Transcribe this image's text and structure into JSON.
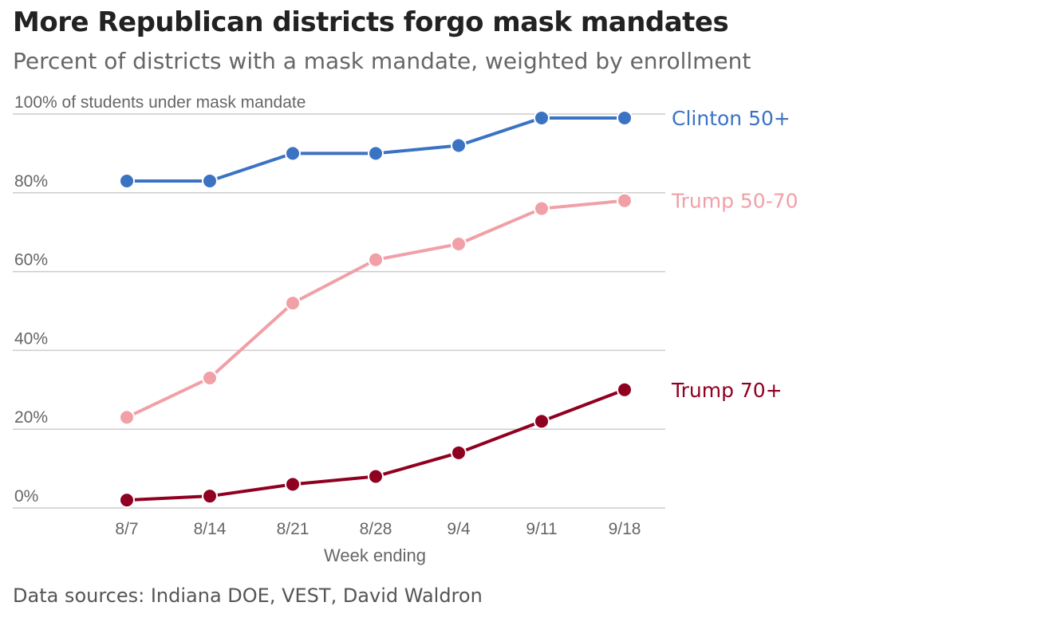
{
  "header": {
    "title": "More Republican districts forgo mask mandates",
    "subtitle": "Percent of districts with a mask mandate, weighted by enrollment"
  },
  "footer": {
    "source": "Data sources: Indiana DOE, VEST, David Waldron"
  },
  "chart_data": {
    "type": "line",
    "title": "More Republican districts forgo mask mandates",
    "subtitle": "Percent of districts with a mask mandate, weighted by enrollment",
    "xlabel": "Week ending",
    "ylabel": "",
    "categories": [
      "8/7",
      "8/14",
      "8/21",
      "8/28",
      "9/4",
      "9/11",
      "9/18"
    ],
    "ylim": [
      0,
      100
    ],
    "yticks": [
      0,
      20,
      40,
      60,
      80,
      100
    ],
    "ytick_labels": [
      "0%",
      "20%",
      "40%",
      "60%",
      "80%",
      "100% of students under mask mandate"
    ],
    "grid": true,
    "legend": "direct labels at right end of lines",
    "series": [
      {
        "name": "Clinton 50+",
        "color": "#3b73c3",
        "values": [
          83,
          83,
          90,
          90,
          92,
          99,
          99
        ]
      },
      {
        "name": "Trump 50-70",
        "color": "#f0a0a6",
        "values": [
          23,
          33,
          52,
          63,
          67,
          76,
          78
        ]
      },
      {
        "name": "Trump 70+",
        "color": "#900020",
        "values": [
          2,
          3,
          6,
          8,
          14,
          22,
          30
        ]
      }
    ]
  }
}
